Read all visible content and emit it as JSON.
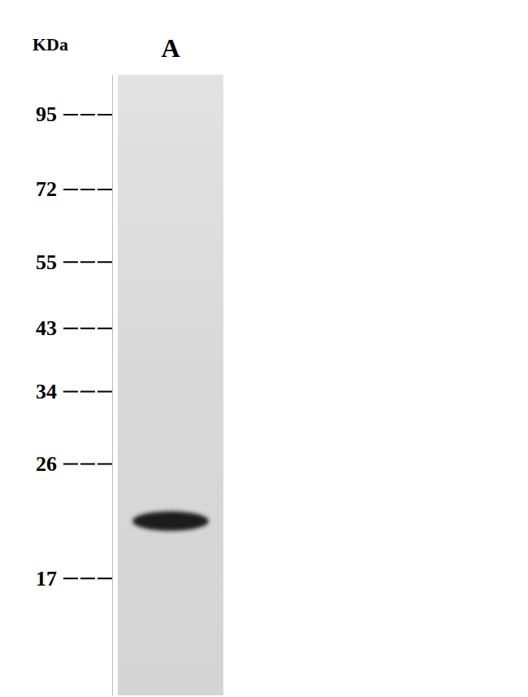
{
  "chart_data": {
    "type": "blot",
    "y_label": "KDa",
    "categories": [
      "A"
    ],
    "values": [
      21
    ],
    "ylim": [
      11,
      110
    ],
    "yticks": [
      17,
      26,
      34,
      43,
      55,
      72,
      95
    ],
    "log": "y",
    "color": "#1a1a1a"
  }
}
